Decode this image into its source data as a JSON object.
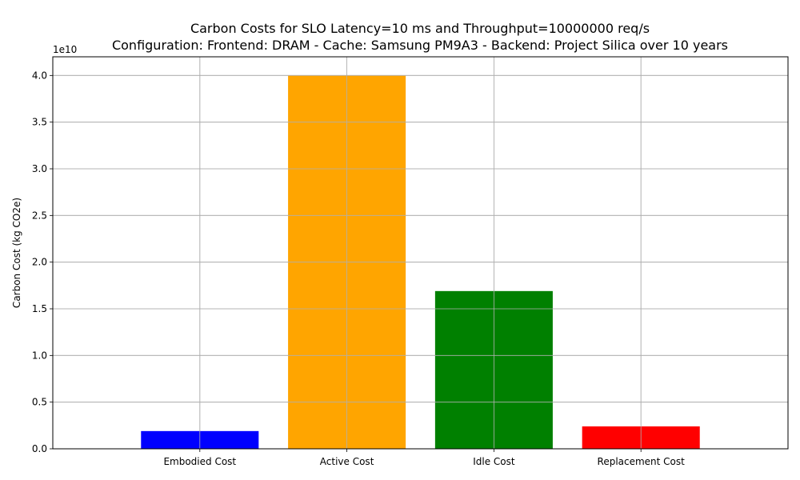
{
  "chart_data": {
    "type": "bar",
    "title": "Carbon Costs for SLO Latency=10 ms and Throughput=10000000 req/s",
    "subtitle": "Configuration: Frontend: DRAM - Cache: Samsung PM9A3 - Backend: Project Silica over 10 years",
    "xlabel": "",
    "ylabel": "Carbon Cost (kg CO2e)",
    "y_offset_label": "1e10",
    "categories": [
      "Embodied Cost",
      "Active Cost",
      "Idle Cost",
      "Replacement Cost"
    ],
    "values": [
      1900000000,
      40000000000,
      16900000000,
      2400000000
    ],
    "colors": [
      "#0000ff",
      "#ffa500",
      "#008000",
      "#ff0000"
    ],
    "ylim": [
      0,
      42000000000
    ],
    "y_ticks": [
      0,
      5000000000,
      10000000000,
      15000000000,
      20000000000,
      25000000000,
      30000000000,
      35000000000,
      40000000000
    ],
    "y_tick_labels": [
      "0.0",
      "0.5",
      "1.0",
      "1.5",
      "2.0",
      "2.5",
      "3.0",
      "3.5",
      "4.0"
    ],
    "grid": true,
    "legend": "none"
  }
}
